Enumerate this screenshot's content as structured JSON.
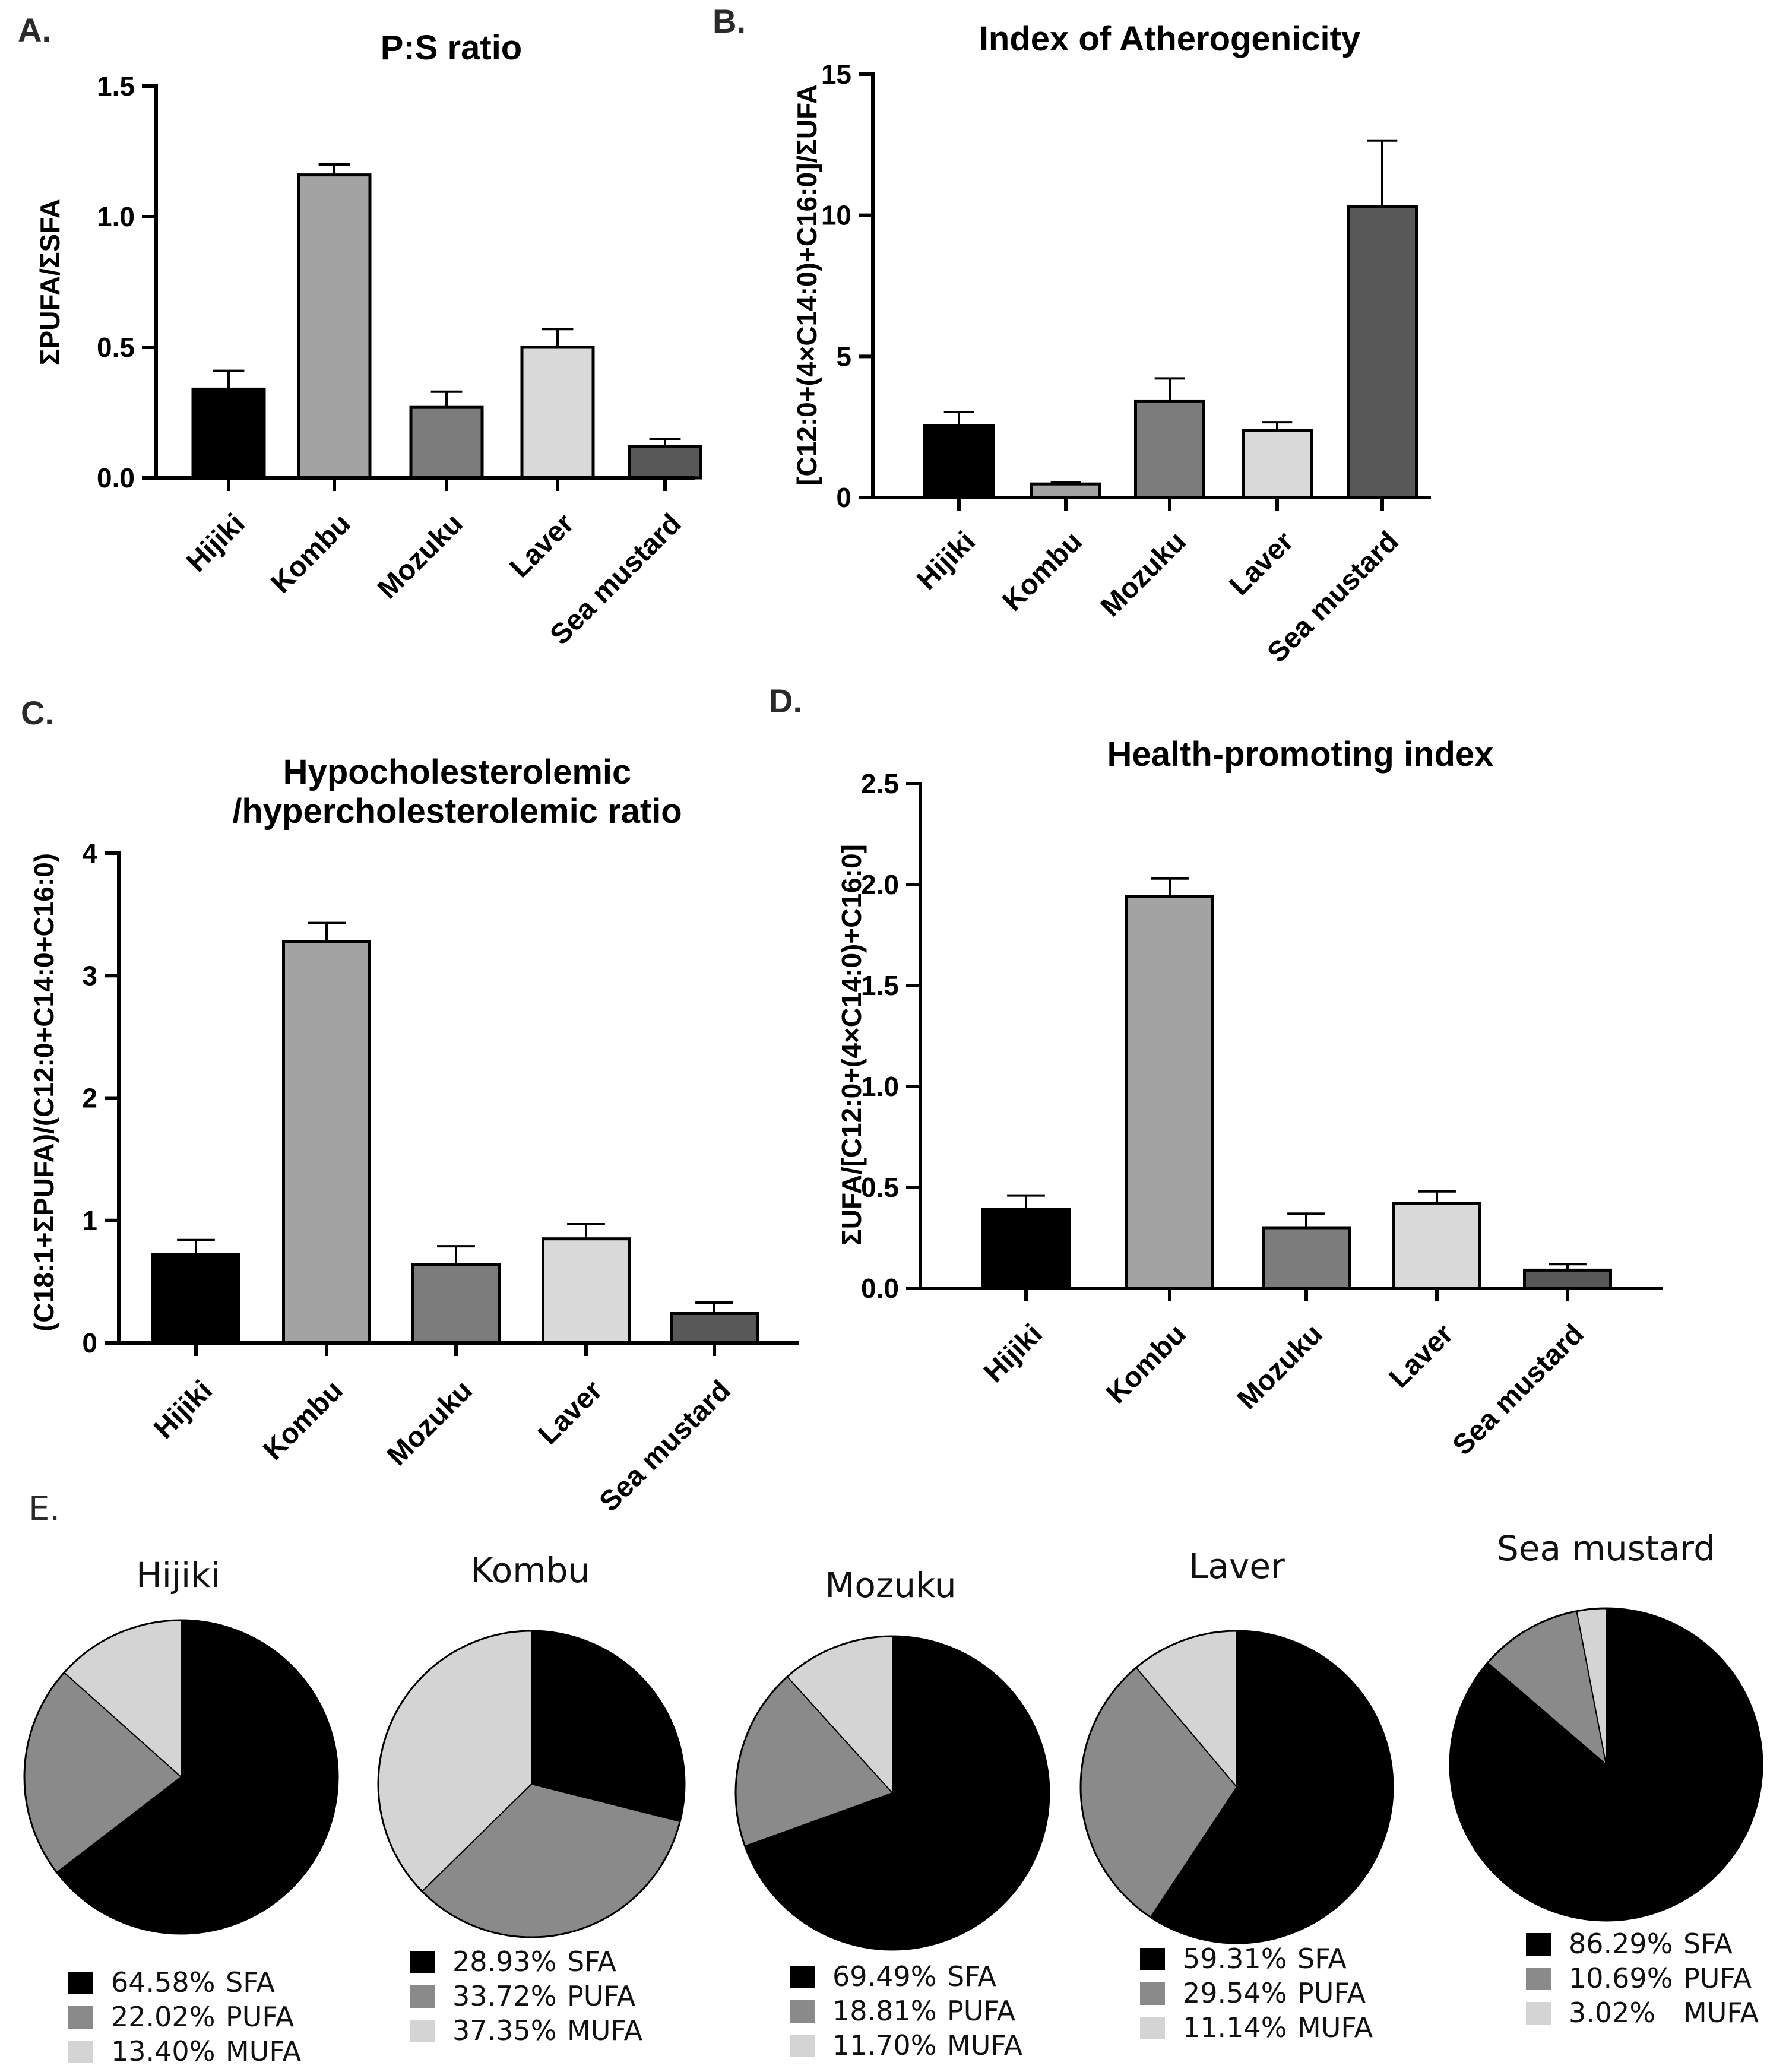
{
  "chart_data": [
    {
      "panel": "A.",
      "type": "bar",
      "title": "P:S ratio",
      "title_lines": [
        "P:S ratio"
      ],
      "ylabel": "ΣPUFA/ΣSFA",
      "xlabel": "",
      "categories": [
        "Hijiki",
        "Kombu",
        "Mozuku",
        "Laver",
        "Sea mustard"
      ],
      "values": [
        0.34,
        1.16,
        0.27,
        0.5,
        0.12
      ],
      "errors": [
        0.07,
        0.04,
        0.06,
        0.07,
        0.03
      ],
      "colors": [
        "#000000",
        "#a3a3a3",
        "#7c7c7c",
        "#d9d9d9",
        "#585858"
      ],
      "ylim": [
        0,
        1.5
      ],
      "yticks": [
        0.0,
        0.5,
        1.0,
        1.5
      ],
      "ytick_labels": [
        "0.0",
        "0.5",
        "1.0",
        "1.5"
      ]
    },
    {
      "panel": "B.",
      "type": "bar",
      "title": "Index of Atherogenicity",
      "title_lines": [
        "Index of Atherogenicity"
      ],
      "ylabel": "[C12:0+(4×C14:0)+C16:0]/ΣUFA",
      "xlabel": "",
      "categories": [
        "Hijiki",
        "Kombu",
        "Mozuku",
        "Laver",
        "Sea mustard"
      ],
      "values": [
        2.55,
        0.48,
        3.42,
        2.37,
        10.3
      ],
      "errors": [
        0.48,
        0.06,
        0.8,
        0.3,
        2.35
      ],
      "colors": [
        "#000000",
        "#a3a3a3",
        "#7c7c7c",
        "#d9d9d9",
        "#585858"
      ],
      "ylim": [
        0,
        15
      ],
      "yticks": [
        0,
        5,
        10,
        15
      ],
      "ytick_labels": [
        "0",
        "5",
        "10",
        "15"
      ]
    },
    {
      "panel": "C.",
      "type": "bar",
      "title": "Hypocholesterolemic /hypercholesterolemic ratio",
      "title_lines": [
        "Hypocholesterolemic",
        "/hypercholesterolemic ratio"
      ],
      "ylabel": "(C18:1+ΣPUFA)/(C12:0+C14:0+C16:0)",
      "xlabel": "",
      "categories": [
        "Hijiki",
        "Kombu",
        "Mozuku",
        "Laver",
        "Sea mustard"
      ],
      "values": [
        0.72,
        3.28,
        0.64,
        0.85,
        0.24
      ],
      "errors": [
        0.12,
        0.15,
        0.15,
        0.12,
        0.09
      ],
      "colors": [
        "#000000",
        "#a3a3a3",
        "#7c7c7c",
        "#d9d9d9",
        "#585858"
      ],
      "ylim": [
        0,
        4
      ],
      "yticks": [
        0,
        1,
        2,
        3,
        4
      ],
      "ytick_labels": [
        "0",
        "1",
        "2",
        "3",
        "4"
      ]
    },
    {
      "panel": "D.",
      "type": "bar",
      "title": "Health-promoting index",
      "title_lines": [
        "Health-promoting index"
      ],
      "ylabel": "ΣUFA/[C12:0+(4×C14:0)+C16:0]",
      "xlabel": "",
      "categories": [
        "Hijiki",
        "Kombu",
        "Mozuku",
        "Laver",
        "Sea mustard"
      ],
      "values": [
        0.39,
        1.94,
        0.3,
        0.42,
        0.09
      ],
      "errors": [
        0.07,
        0.09,
        0.07,
        0.06,
        0.03
      ],
      "colors": [
        "#000000",
        "#a3a3a3",
        "#7c7c7c",
        "#d9d9d9",
        "#585858"
      ],
      "ylim": [
        0,
        2.5
      ],
      "yticks": [
        0.0,
        0.5,
        1.0,
        1.5,
        2.0,
        2.5
      ],
      "ytick_labels": [
        "0.0",
        "0.5",
        "1.0",
        "1.5",
        "2.0",
        "2.5"
      ]
    },
    {
      "panel": "E.",
      "type": "pie",
      "legend_labels": [
        "SFA",
        "PUFA",
        "MUFA"
      ],
      "slice_colors": [
        "#000000",
        "#8a8a8a",
        "#d4d4d4"
      ],
      "pies": [
        {
          "title": "Hijiki",
          "values": [
            64.58,
            22.02,
            13.4
          ],
          "labels": [
            "64.58%",
            "22.02%",
            "13.40%"
          ]
        },
        {
          "title": "Kombu",
          "values": [
            28.93,
            33.72,
            37.35
          ],
          "labels": [
            "28.93%",
            "33.72%",
            "37.35%"
          ]
        },
        {
          "title": "Mozuku",
          "values": [
            69.49,
            18.81,
            11.7
          ],
          "labels": [
            "69.49%",
            "18.81%",
            "11.70%"
          ]
        },
        {
          "title": "Laver",
          "values": [
            59.31,
            29.54,
            11.14
          ],
          "labels": [
            "59.31%",
            "29.54%",
            "11.14%"
          ]
        },
        {
          "title": "Sea mustard",
          "values": [
            86.29,
            10.69,
            3.02
          ],
          "labels": [
            "86.29%",
            "10.69%",
            "3.02%"
          ]
        }
      ]
    }
  ]
}
